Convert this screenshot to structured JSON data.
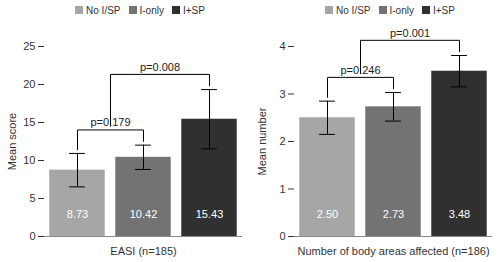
{
  "chart_data": [
    {
      "type": "bar",
      "categories": [
        "EASI (n=185)"
      ],
      "ylabel": "Mean score",
      "ylim": [
        0,
        25
      ],
      "yticks": [
        0,
        5,
        10,
        15,
        20,
        25
      ],
      "legend": "top",
      "data_labels": true,
      "series": [
        {
          "name": "No I/SP",
          "color": "#a6a6a6",
          "values": [
            8.73
          ],
          "errors": [
            2.2
          ]
        },
        {
          "name": "I-only",
          "color": "#737373",
          "values": [
            10.42
          ],
          "errors": [
            1.6
          ]
        },
        {
          "name": "I+SP",
          "color": "#303030",
          "values": [
            15.43
          ],
          "errors": [
            3.9
          ]
        }
      ],
      "annotations": [
        {
          "text": "p=0.179",
          "left": [
            "No I/SP"
          ],
          "right": [
            "I-only"
          ]
        },
        {
          "text": "p=0.008",
          "left": [
            "No I/SP",
            "I-only"
          ],
          "right": [
            "I+SP"
          ]
        }
      ]
    },
    {
      "type": "bar",
      "categories": [
        "Number of body areas affected (n=186)"
      ],
      "ylabel": "Mean number",
      "ylim": [
        0,
        4
      ],
      "yticks": [
        0,
        1,
        2,
        3,
        4
      ],
      "legend": "top",
      "data_labels": true,
      "series": [
        {
          "name": "No I/SP",
          "color": "#a6a6a6",
          "values": [
            2.5
          ],
          "value_labels": [
            "2.50"
          ],
          "errors": [
            0.35
          ]
        },
        {
          "name": "I-only",
          "color": "#737373",
          "values": [
            2.73
          ],
          "value_labels": [
            "2.73"
          ],
          "errors": [
            0.3
          ]
        },
        {
          "name": "I+SP",
          "color": "#303030",
          "values": [
            3.48
          ],
          "value_labels": [
            "3.48"
          ],
          "errors": [
            0.33
          ]
        }
      ],
      "annotations": [
        {
          "text": "p=0.246",
          "left": [
            "No I/SP"
          ],
          "right": [
            "I-only"
          ]
        },
        {
          "text": "p=0.001",
          "left": [
            "No I/SP",
            "I-only"
          ],
          "right": [
            "I+SP"
          ]
        }
      ]
    }
  ]
}
